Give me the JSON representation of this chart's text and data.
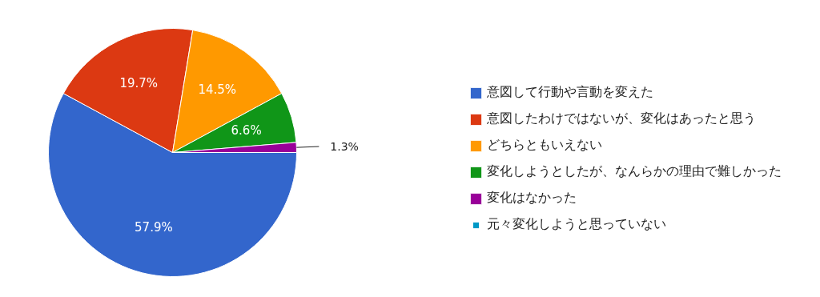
{
  "chart_data": {
    "type": "pie",
    "categories": [
      "意図して行動や言動を変えた",
      "意図したわけではないが、変化はあったと思う",
      "どちらともいえない",
      "変化しようとしたが、なんらかの理由で難しかった",
      "変化はなかった",
      "元々変化しようと思っていない"
    ],
    "values": [
      57.9,
      19.7,
      14.5,
      6.6,
      1.3,
      0
    ],
    "colors": [
      "#3366cc",
      "#dc3912",
      "#ff9900",
      "#109618",
      "#990099",
      "#0099c6"
    ],
    "value_labels": [
      "57.9%",
      "19.7%",
      "14.5%",
      "6.6%",
      "1.3%",
      null
    ],
    "legend": "right"
  }
}
